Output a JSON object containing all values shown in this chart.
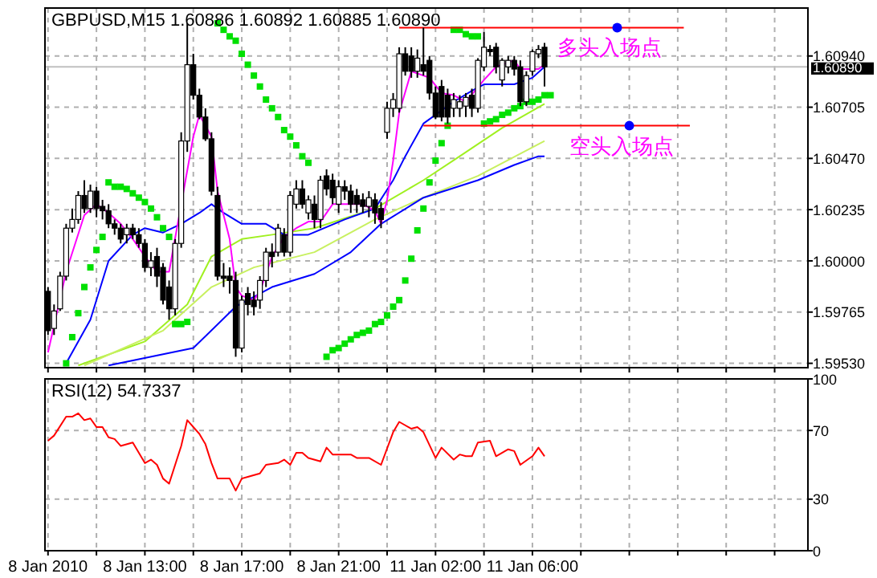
{
  "chart_data": [
    {
      "type": "candlestick",
      "title": "GBPUSD,M15  1.60886 1.60892 1.60885 1.60890",
      "tick_labels": "y",
      "grid": true,
      "ylim": [
        1.5951,
        1.6116
      ],
      "categories": [
        null,
        null,
        null,
        null,
        null,
        null,
        null,
        null,
        null,
        null,
        null,
        null,
        null,
        null,
        null,
        null,
        null,
        null,
        null,
        null,
        null,
        null,
        null,
        null,
        null,
        null,
        null,
        null,
        null,
        null,
        null,
        null,
        null,
        null,
        null,
        null,
        null,
        null,
        null,
        null,
        null,
        null,
        null,
        null,
        null,
        null,
        null,
        null,
        null,
        null,
        null,
        null,
        null,
        null,
        null,
        null,
        null,
        null,
        null,
        null,
        null,
        null,
        null,
        null,
        null,
        null,
        null,
        null,
        null,
        null,
        null,
        null,
        null,
        null,
        null,
        null,
        null,
        null,
        null,
        null,
        null,
        null,
        null,
        null,
        null,
        null,
        null,
        null,
        null,
        null,
        null,
        null,
        null,
        null,
        null,
        null,
        null,
        null,
        null,
        null,
        null,
        null,
        null,
        null,
        null,
        null,
        null,
        null,
        null,
        null,
        null,
        null,
        null,
        null,
        null,
        null,
        null,
        null,
        null,
        null,
        null,
        null,
        null,
        null,
        null,
        null
      ],
      "yticks": [
        {
          "value": 1.5953,
          "label": "1.59530"
        },
        {
          "value": 1.59765,
          "label": "1.59765"
        },
        {
          "value": 1.6,
          "label": "1.60000"
        },
        {
          "value": 1.60235,
          "label": "1.60235"
        },
        {
          "value": 1.6047,
          "label": "1.60470"
        },
        {
          "value": 1.60705,
          "label": "1.60705"
        },
        {
          "value": 1.6094,
          "label": "1.60940"
        }
      ],
      "ohlc": [
        [
          1.5986,
          1.5988,
          1.5966,
          1.5968
        ],
        [
          1.5969,
          1.598,
          1.5966,
          1.5977
        ],
        [
          1.5978,
          1.5995,
          1.5977,
          1.5993
        ],
        [
          1.5993,
          1.6017,
          1.5991,
          1.6015
        ],
        [
          1.6015,
          1.6024,
          1.6013,
          1.6019
        ],
        [
          1.6019,
          1.6032,
          1.6017,
          1.603
        ],
        [
          1.603,
          1.6037,
          1.6022,
          1.6024
        ],
        [
          1.6024,
          1.6035,
          1.6022,
          1.6032
        ],
        [
          1.6032,
          1.6034,
          1.602,
          1.6024
        ],
        [
          1.6025,
          1.6028,
          1.6019,
          1.6023
        ],
        [
          1.6023,
          1.6026,
          1.6015,
          1.6017
        ],
        [
          1.6017,
          1.6019,
          1.6012,
          1.6015
        ],
        [
          1.6015,
          1.6017,
          1.6008,
          1.601
        ],
        [
          1.6012,
          1.6017,
          1.6008,
          1.6015
        ],
        [
          1.6015,
          1.6017,
          1.601,
          1.6012
        ],
        [
          1.6012,
          1.6015,
          1.6006,
          1.6008
        ],
        [
          1.6008,
          1.601,
          1.5995,
          1.5997
        ],
        [
          1.5997,
          1.6004,
          1.5993,
          1.6
        ],
        [
          1.6002,
          1.6006,
          1.5988,
          1.5993
        ],
        [
          1.5997,
          1.5999,
          1.598,
          1.5982
        ],
        [
          1.5988,
          1.5991,
          1.5973,
          1.5978
        ],
        [
          1.5978,
          1.601,
          1.5975,
          1.6008
        ],
        [
          1.6008,
          1.6059,
          1.6006,
          1.6055
        ],
        [
          1.6055,
          1.6109,
          1.605,
          1.609
        ],
        [
          1.609,
          1.6095,
          1.6074,
          1.6076
        ],
        [
          1.6076,
          1.6079,
          1.6065,
          1.6066
        ],
        [
          1.6066,
          1.607,
          1.6055,
          1.6056
        ],
        [
          1.6056,
          1.6059,
          1.603,
          1.6032
        ],
        [
          1.603,
          1.6034,
          1.5991,
          1.5993
        ],
        [
          1.5993,
          1.5999,
          1.5988,
          1.5992
        ],
        [
          1.5993,
          1.5997,
          1.5985,
          1.5991
        ],
        [
          1.5991,
          1.5995,
          1.5956,
          1.596
        ],
        [
          1.596,
          1.5984,
          1.5958,
          1.5982
        ],
        [
          1.5985,
          1.5988,
          1.5975,
          1.598
        ],
        [
          1.5982,
          1.5986,
          1.5975,
          1.5979
        ],
        [
          1.5982,
          1.5993,
          1.5978,
          1.5991
        ],
        [
          1.5991,
          1.6006,
          1.5988,
          1.6004
        ],
        [
          1.6004,
          1.6008,
          1.5997,
          1.6002
        ],
        [
          1.6004,
          1.6017,
          1.6002,
          1.6015
        ],
        [
          1.6012,
          1.6015,
          1.6002,
          1.6004
        ],
        [
          1.6004,
          1.6032,
          1.6002,
          1.603
        ],
        [
          1.6026,
          1.6037,
          1.6024,
          1.6033
        ],
        [
          1.6033,
          1.6037,
          1.6024,
          1.6026
        ],
        [
          1.6022,
          1.603,
          1.6019,
          1.6028
        ],
        [
          1.6026,
          1.603,
          1.6015,
          1.6019
        ],
        [
          1.6019,
          1.6039,
          1.6015,
          1.6037
        ],
        [
          1.6039,
          1.6042,
          1.603,
          1.6033
        ],
        [
          1.6037,
          1.604,
          1.6026,
          1.6029
        ],
        [
          1.6026,
          1.6037,
          1.6022,
          1.6034
        ],
        [
          1.6034,
          1.6037,
          1.6028,
          1.6032
        ],
        [
          1.6032,
          1.6035,
          1.6022,
          1.6026
        ],
        [
          1.603,
          1.6033,
          1.6022,
          1.6026
        ],
        [
          1.6028,
          1.6031,
          1.6022,
          1.6025
        ],
        [
          1.6025,
          1.6032,
          1.602,
          1.6029
        ],
        [
          1.6028,
          1.6031,
          1.6017,
          1.6022
        ],
        [
          1.6024,
          1.6027,
          1.6015,
          1.6019
        ],
        [
          1.6059,
          1.6073,
          1.6056,
          1.607
        ],
        [
          1.607,
          1.6077,
          1.6066,
          1.6074
        ],
        [
          1.607,
          1.6098,
          1.6068,
          1.6095
        ],
        [
          1.6095,
          1.6098,
          1.6085,
          1.6087
        ],
        [
          1.6094,
          1.6098,
          1.6084,
          1.6087
        ],
        [
          1.6087,
          1.6097,
          1.6084,
          1.6093
        ],
        [
          1.609,
          1.6107,
          1.6085,
          1.6087
        ],
        [
          1.6092,
          1.6094,
          1.6074,
          1.6077
        ],
        [
          1.6077,
          1.608,
          1.6065,
          1.6066
        ],
        [
          1.608,
          1.6083,
          1.6064,
          1.6066
        ],
        [
          1.6076,
          1.6079,
          1.6063,
          1.6066
        ],
        [
          1.607,
          1.6077,
          1.6066,
          1.6074
        ],
        [
          1.607,
          1.6076,
          1.6066,
          1.6073
        ],
        [
          1.6071,
          1.6077,
          1.6066,
          1.6075
        ],
        [
          1.6076,
          1.6079,
          1.6066,
          1.607
        ],
        [
          1.607,
          1.6093,
          1.6068,
          1.6092
        ],
        [
          1.6089,
          1.6105,
          1.6087,
          1.6098
        ],
        [
          1.6097,
          1.6099,
          1.6094,
          1.6096
        ],
        [
          1.6098,
          1.61,
          1.6086,
          1.6089
        ],
        [
          1.6083,
          1.6093,
          1.608,
          1.6092
        ],
        [
          1.6089,
          1.6094,
          1.6086,
          1.6092
        ],
        [
          1.6092,
          1.6094,
          1.6085,
          1.6088
        ],
        [
          1.6089,
          1.6092,
          1.6071,
          1.6073
        ],
        [
          1.6073,
          1.6087,
          1.6071,
          1.6085
        ],
        [
          1.6087,
          1.6097,
          1.6085,
          1.6096
        ],
        [
          1.6095,
          1.6099,
          1.6093,
          1.6097
        ],
        [
          1.6098,
          1.61,
          1.608,
          1.6089
        ],
        null,
        null,
        null,
        null,
        null,
        null,
        null,
        null,
        null,
        null,
        null,
        null,
        null,
        null,
        null,
        null,
        null,
        null,
        null,
        null,
        null,
        null,
        null,
        null,
        null,
        null,
        null,
        null,
        null,
        null,
        null,
        null,
        null,
        null,
        null,
        null,
        null,
        null,
        null,
        null,
        null,
        null,
        null
      ],
      "series": [
        {
          "type": "line",
          "color": "#a0f020",
          "values": [
            null,
            null,
            null,
            null,
            null,
            1.5952,
            null,
            null,
            null,
            null,
            null,
            null,
            null,
            null,
            null,
            null,
            1.5963,
            null,
            null,
            null,
            null,
            null,
            null,
            1.598,
            null,
            null,
            null,
            1.6002,
            null,
            null,
            null,
            null,
            1.601,
            null,
            null,
            null,
            null,
            1.6012,
            null,
            null,
            null,
            null,
            null,
            null,
            1.6015,
            null,
            null,
            null,
            null,
            null,
            null,
            null,
            null,
            null,
            1.6024,
            null,
            null,
            null,
            null,
            null,
            null,
            null,
            1.6037,
            null,
            null,
            null,
            null,
            null,
            1.6048,
            null,
            null,
            null,
            null,
            null,
            null,
            1.6061,
            null,
            null,
            null,
            null,
            null,
            null,
            1.6072,
            null,
            null,
            null,
            null,
            null,
            null,
            null,
            null,
            null,
            null,
            null,
            null,
            null,
            null,
            null,
            null,
            null,
            null,
            null,
            null,
            null,
            null,
            null,
            null,
            null,
            null,
            null,
            null,
            null,
            null,
            null,
            null,
            null,
            null,
            null,
            null,
            null,
            null,
            null,
            null,
            null,
            null,
            null
          ]
        },
        {
          "type": "line",
          "color": "#c8f060",
          "values": [
            null,
            null,
            null,
            null,
            null,
            null,
            1.5952,
            null,
            null,
            null,
            null,
            null,
            null,
            null,
            null,
            null,
            null,
            null,
            null,
            1.5968,
            null,
            null,
            null,
            null,
            null,
            null,
            null,
            1.5988,
            null,
            null,
            null,
            null,
            null,
            null,
            1.5997,
            null,
            null,
            null,
            null,
            null,
            null,
            null,
            null,
            null,
            1.6004,
            null,
            null,
            null,
            null,
            null,
            null,
            null,
            null,
            null,
            1.6019,
            null,
            null,
            null,
            null,
            null,
            null,
            null,
            1.6029,
            null,
            null,
            null,
            null,
            null,
            null,
            null,
            null,
            1.6039,
            null,
            null,
            null,
            null,
            null,
            null,
            null,
            null,
            null,
            null,
            1.6055,
            null,
            null,
            null,
            null,
            null,
            null,
            null,
            null,
            null,
            null,
            null,
            null,
            null,
            null,
            null,
            null,
            null,
            null,
            null,
            null,
            null,
            null,
            null,
            null,
            null,
            null,
            null,
            null,
            null,
            null,
            null,
            null,
            null,
            null,
            null,
            null,
            null,
            null,
            null,
            null,
            null,
            null,
            null
          ]
        },
        {
          "type": "line",
          "color": "#0000ff",
          "values": [
            null,
            null,
            null,
            null,
            null,
            null,
            null,
            null,
            null,
            null,
            1.5952,
            null,
            null,
            null,
            null,
            null,
            null,
            null,
            null,
            null,
            null,
            null,
            null,
            null,
            1.596,
            null,
            null,
            null,
            null,
            null,
            null,
            1.5979,
            null,
            null,
            null,
            null,
            null,
            1.5988,
            null,
            null,
            null,
            null,
            null,
            null,
            1.5994,
            null,
            null,
            null,
            null,
            null,
            1.6004,
            null,
            null,
            null,
            null,
            1.6017,
            null,
            null,
            null,
            null,
            null,
            null,
            1.6029,
            null,
            null,
            null,
            null,
            null,
            null,
            null,
            null,
            1.6037,
            null,
            null,
            null,
            null,
            null,
            1.6044,
            null,
            null,
            null,
            1.6048,
            1.6048,
            null,
            null,
            null,
            null,
            null,
            null,
            null,
            null,
            null,
            null,
            null,
            null,
            null,
            null,
            null,
            null,
            null,
            null,
            null,
            null,
            null,
            null,
            null,
            null,
            null,
            null,
            null,
            null,
            null,
            null,
            null,
            null,
            null,
            null,
            null,
            null,
            null,
            null,
            null,
            null,
            null,
            null,
            null
          ]
        },
        {
          "type": "line",
          "color": "#0000ff",
          "values": [
            null,
            null,
            null,
            1.5953,
            null,
            null,
            null,
            1.5973,
            null,
            null,
            1.6,
            null,
            null,
            null,
            1.6012,
            null,
            1.6015,
            null,
            null,
            1.6013,
            null,
            null,
            1.6017,
            null,
            null,
            1.6022,
            null,
            1.6026,
            null,
            1.6022,
            null,
            null,
            1.6017,
            null,
            null,
            null,
            1.6017,
            null,
            null,
            1.6012,
            null,
            null,
            null,
            1.6012,
            null,
            null,
            null,
            null,
            null,
            1.6019,
            null,
            null,
            null,
            null,
            1.6024,
            null,
            null,
            1.6037,
            null,
            1.6048,
            null,
            null,
            1.6063,
            null,
            null,
            null,
            null,
            1.6073,
            null,
            null,
            1.6078,
            null,
            1.6081,
            null,
            null,
            null,
            null,
            1.6081,
            null,
            null,
            1.6084,
            null,
            1.6089,
            null,
            null,
            null,
            null,
            null,
            null,
            null,
            null,
            null,
            null,
            null,
            null,
            null,
            null,
            null,
            null,
            null,
            null,
            null,
            null,
            null,
            null,
            null,
            null,
            null,
            null,
            null,
            null,
            null,
            null,
            null,
            null,
            null,
            null,
            null,
            null,
            null,
            null,
            null,
            null,
            null,
            null,
            null
          ]
        },
        {
          "type": "line",
          "color": "#ff00ff",
          "values": [
            1.5958,
            null,
            null,
            1.5995,
            null,
            null,
            1.6021,
            null,
            1.6026,
            null,
            1.6022,
            null,
            1.6017,
            null,
            1.601,
            null,
            1.6002,
            null,
            1.5995,
            null,
            1.5995,
            null,
            null,
            null,
            1.6057,
            1.6067,
            null,
            1.6057,
            1.6032,
            null,
            1.601,
            1.5988,
            1.5984,
            null,
            1.5982,
            1.5986,
            null,
            1.6002,
            null,
            1.6011,
            null,
            1.6015,
            null,
            1.6018,
            null,
            1.6018,
            null,
            1.6026,
            null,
            1.6026,
            null,
            null,
            1.6026,
            null,
            1.6023,
            1.6017,
            1.6028,
            1.6046,
            1.6068,
            null,
            1.6087,
            null,
            null,
            1.6084,
            null,
            1.6077,
            null,
            1.6076,
            null,
            1.6073,
            null,
            null,
            1.6083,
            null,
            1.6089,
            null,
            null,
            1.6092,
            1.6088,
            1.6088,
            null,
            1.6088,
            1.609,
            null,
            null,
            null,
            null,
            null,
            null,
            null,
            null,
            null,
            null,
            null,
            null,
            null,
            null,
            null,
            null,
            null,
            null,
            null,
            null,
            null,
            null,
            null,
            null,
            null,
            null,
            null,
            null,
            null,
            null,
            null,
            null,
            null,
            null,
            null,
            null,
            null,
            null,
            null,
            null,
            null,
            null,
            null
          ]
        },
        {
          "type": "scatter",
          "marker": "square",
          "color": "#00e000",
          "values": [
            null,
            null,
            null,
            1.5953,
            1.5965,
            1.5976,
            1.5988,
            1.5997,
            1.6005,
            1.6011,
            1.6036,
            1.6034,
            1.6034,
            1.6033,
            1.6031,
            1.6029,
            1.6027,
            1.6024,
            1.602,
            1.6015,
            1.6011,
            1.5971,
            1.5971,
            1.5972,
            null,
            null,
            null,
            null,
            1.6109,
            1.6106,
            1.6103,
            1.6101,
            1.6095,
            1.609,
            1.6085,
            1.608,
            1.6074,
            1.607,
            1.6066,
            1.606,
            1.6057,
            1.6053,
            1.6048,
            1.6045,
            null,
            null,
            1.5956,
            1.5959,
            1.596,
            1.5962,
            1.5964,
            1.5966,
            1.5967,
            1.5968,
            1.5971,
            1.5972,
            1.5975,
            1.5979,
            1.5982,
            1.5991,
            1.6001,
            1.6014,
            1.6024,
            1.6036,
            1.6046,
            1.6054,
            1.6062,
            1.6106,
            1.6106,
            1.6104,
            1.6103,
            1.6103,
            1.6063,
            1.6064,
            1.6065,
            1.6067,
            1.6068,
            1.607,
            1.6071,
            1.6073,
            1.6073,
            1.6074,
            1.6076,
            1.6076,
            null,
            null,
            null,
            null,
            null,
            null,
            null,
            null,
            null,
            null,
            null,
            null,
            null,
            null,
            null,
            null,
            null,
            null,
            null,
            null,
            null,
            null,
            null,
            null,
            null,
            null,
            null,
            null,
            null,
            null,
            null,
            null,
            null,
            null,
            null,
            null,
            null,
            null,
            null,
            null,
            null,
            null
          ]
        },
        {
          "type": "line",
          "color": "#ff0000",
          "values": [
            null,
            null,
            null,
            null,
            null,
            null,
            null,
            null,
            null,
            null,
            null,
            null,
            null,
            null,
            null,
            null,
            null,
            null,
            null,
            null,
            null,
            null,
            null,
            null,
            null,
            null,
            null,
            null,
            null,
            null,
            null,
            null,
            null,
            null,
            null,
            null,
            null,
            null,
            null,
            null,
            null,
            null,
            null,
            null,
            null,
            null,
            null,
            null,
            null,
            null,
            null,
            null,
            null,
            null,
            null,
            null,
            null,
            null,
            1.6107,
            null,
            null,
            null,
            null,
            null,
            null,
            null,
            null,
            null,
            null,
            null,
            null,
            null,
            null,
            null,
            null,
            null,
            null,
            null,
            null,
            null,
            null,
            null,
            null,
            null,
            null,
            null,
            null,
            null,
            null,
            null,
            null,
            null,
            null,
            null,
            null,
            null,
            null,
            null,
            null,
            null,
            null,
            null,
            null,
            null,
            null,
            1.6107,
            null,
            null,
            null,
            null,
            null,
            null,
            null,
            null,
            null,
            null,
            null,
            null,
            null,
            null,
            null,
            null,
            null,
            null,
            null,
            null
          ]
        },
        {
          "type": "line",
          "color": "#ff0000",
          "values": [
            null,
            null,
            null,
            null,
            null,
            null,
            null,
            null,
            null,
            null,
            null,
            null,
            null,
            null,
            null,
            null,
            null,
            null,
            null,
            null,
            null,
            null,
            null,
            null,
            null,
            null,
            null,
            null,
            null,
            null,
            null,
            null,
            null,
            null,
            null,
            null,
            null,
            null,
            null,
            null,
            null,
            null,
            null,
            null,
            null,
            null,
            null,
            null,
            null,
            null,
            null,
            null,
            null,
            null,
            null,
            null,
            null,
            null,
            null,
            null,
            null,
            null,
            1.6062,
            null,
            null,
            null,
            null,
            null,
            null,
            null,
            null,
            null,
            null,
            null,
            null,
            null,
            null,
            null,
            null,
            null,
            null,
            null,
            null,
            null,
            null,
            null,
            null,
            null,
            null,
            null,
            null,
            null,
            null,
            null,
            null,
            null,
            null,
            null,
            null,
            null,
            null,
            null,
            null,
            null,
            null,
            null,
            1.6062,
            null,
            null,
            null,
            null,
            null,
            null,
            null,
            null,
            null,
            null,
            null,
            null,
            null,
            null,
            null,
            null,
            null,
            null,
            null
          ]
        },
        {
          "type": "scatter",
          "marker": "circle",
          "color": "#0000ff",
          "values": [
            null,
            null,
            null,
            null,
            null,
            null,
            null,
            null,
            null,
            null,
            null,
            null,
            null,
            null,
            null,
            null,
            null,
            null,
            null,
            null,
            null,
            null,
            null,
            null,
            null,
            null,
            null,
            null,
            null,
            null,
            null,
            null,
            null,
            null,
            null,
            null,
            null,
            null,
            null,
            null,
            null,
            null,
            null,
            null,
            null,
            null,
            null,
            null,
            null,
            null,
            null,
            null,
            null,
            null,
            null,
            null,
            null,
            null,
            null,
            null,
            null,
            null,
            null,
            null,
            null,
            null,
            null,
            null,
            null,
            null,
            null,
            null,
            null,
            null,
            null,
            null,
            null,
            null,
            null,
            null,
            null,
            null,
            null,
            null,
            null,
            null,
            null,
            null,
            null,
            null,
            null,
            null,
            null,
            null,
            1.6107,
            null,
            1.6062,
            null,
            null,
            null,
            null,
            null,
            null,
            null,
            null,
            null,
            null,
            null,
            null,
            null,
            null,
            null,
            null,
            null,
            null,
            null,
            null,
            null,
            null,
            null,
            null,
            null,
            null,
            null,
            null,
            null
          ]
        }
      ],
      "ref_lines": [
        {
          "axis": "y",
          "value": 1.6089,
          "label": "1.60890",
          "color": "#c0c0c0"
        }
      ],
      "annotations": [
        "多头入场点",
        "空头入场点"
      ]
    },
    {
      "type": "line",
      "title": "RSI(12) 54.7337",
      "grid": true,
      "ylim": [
        0,
        100
      ],
      "yticks": [
        0,
        30,
        70,
        100
      ],
      "categories": [
        "8 Jan 2010",
        null,
        null,
        null,
        null,
        null,
        null,
        null,
        null,
        null,
        null,
        null,
        null,
        null,
        null,
        null,
        "8 Jan 13:00",
        null,
        null,
        null,
        null,
        null,
        null,
        null,
        null,
        null,
        null,
        null,
        null,
        null,
        null,
        null,
        "8 Jan 17:00",
        null,
        null,
        null,
        null,
        null,
        null,
        null,
        null,
        null,
        null,
        null,
        null,
        null,
        null,
        null,
        "8 Jan 21:00",
        null,
        null,
        null,
        null,
        null,
        null,
        null,
        null,
        null,
        null,
        null,
        null,
        null,
        null,
        null,
        "11 Jan 02:00",
        null,
        null,
        null,
        null,
        null,
        null,
        null,
        null,
        null,
        null,
        null,
        null,
        null,
        null,
        null,
        "11 Jan 06:00",
        null,
        null,
        null,
        null,
        null,
        null,
        null,
        null,
        null,
        null,
        null,
        null,
        null,
        null,
        null,
        null,
        null,
        null,
        null,
        null,
        null,
        null,
        null,
        null,
        null,
        null,
        null,
        null,
        null,
        null,
        null,
        null,
        null,
        null,
        null,
        null,
        null,
        null,
        null,
        null,
        null,
        null,
        null,
        null,
        null
      ],
      "series": [
        {
          "color": "#ff0000",
          "values": [
            64,
            67,
            null,
            78,
            78,
            80,
            76,
            77,
            72,
            72,
            66,
            65,
            61,
            null,
            63,
            null,
            51,
            53,
            50,
            42,
            39,
            null,
            61,
            76,
            null,
            68,
            62,
            51,
            42,
            null,
            42,
            35,
            42,
            43,
            null,
            45,
            50,
            null,
            51,
            53,
            50,
            57,
            57,
            54,
            null,
            52,
            60,
            56,
            null,
            null,
            56,
            54,
            null,
            54,
            null,
            50,
            null,
            69,
            75,
            null,
            71,
            72,
            69,
            null,
            54,
            60,
            null,
            53,
            56,
            55,
            55,
            63,
            null,
            64,
            55,
            null,
            59,
            58,
            50,
            null,
            55,
            60,
            55,
            null,
            null,
            null,
            null,
            null,
            null,
            null,
            null,
            null,
            null,
            null,
            null,
            null,
            null,
            null,
            null,
            null,
            null,
            null,
            null,
            null,
            null,
            null,
            null,
            null,
            null,
            null,
            null,
            null,
            null,
            null,
            null,
            null,
            null,
            null,
            null,
            null,
            null,
            null,
            null,
            null,
            null,
            null
          ]
        }
      ]
    }
  ]
}
